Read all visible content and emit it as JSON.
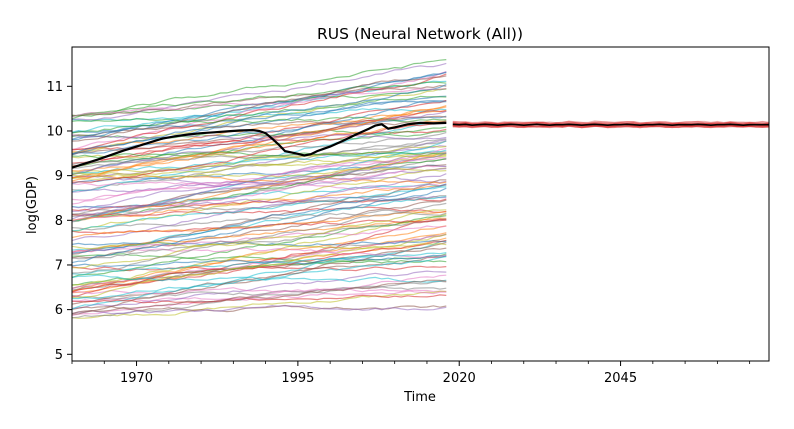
{
  "chart_data": {
    "type": "line",
    "title": "RUS (Neural Network (All))",
    "xlabel": "Time",
    "ylabel": "log(GDP)",
    "xlim": [
      1960,
      2068
    ],
    "ylim": [
      4.85,
      11.88
    ],
    "x_ticks": [
      1970,
      1995,
      2020,
      2045
    ],
    "y_ticks": [
      5,
      6,
      7,
      8,
      9,
      10,
      11
    ],
    "grid": false,
    "legend": "none",
    "highlight_series": {
      "color": "#000000",
      "x": [
        1960,
        1962,
        1964,
        1966,
        1968,
        1970,
        1972,
        1974,
        1976,
        1978,
        1980,
        1982,
        1984,
        1986,
        1988,
        1989,
        1990,
        1991,
        1992,
        1993,
        1994,
        1995,
        1996,
        1997,
        1998,
        1999,
        2000,
        2002,
        2004,
        2006,
        2007,
        2008,
        2009,
        2010,
        2012,
        2014,
        2016,
        2018
      ],
      "values": [
        9.18,
        9.27,
        9.36,
        9.46,
        9.56,
        9.65,
        9.74,
        9.83,
        9.88,
        9.92,
        9.95,
        9.97,
        9.99,
        10.01,
        10.02,
        10.0,
        9.95,
        9.83,
        9.7,
        9.55,
        9.52,
        9.49,
        9.45,
        9.48,
        9.55,
        9.6,
        9.65,
        9.78,
        9.92,
        10.05,
        10.12,
        10.15,
        10.05,
        10.08,
        10.15,
        10.18,
        10.17,
        10.18
      ]
    },
    "forecast": {
      "x_start": 2019,
      "x_end": 2068,
      "mean": [
        10.15,
        10.14,
        10.15,
        10.13,
        10.14,
        10.15,
        10.14,
        10.13,
        10.14,
        10.15,
        10.14,
        10.13,
        10.14,
        10.15,
        10.14,
        10.13,
        10.14,
        10.14,
        10.15,
        10.14,
        10.13,
        10.14,
        10.15,
        10.14,
        10.13,
        10.14,
        10.14,
        10.15,
        10.14,
        10.13,
        10.14,
        10.14,
        10.15,
        10.14,
        10.13,
        10.14,
        10.14,
        10.14,
        10.15,
        10.14,
        10.13,
        10.14,
        10.14,
        10.15,
        10.14,
        10.13,
        10.14,
        10.14,
        10.14,
        10.14
      ],
      "band_width": 0.12,
      "line_color": "#000000",
      "band_color": "#d62728"
    },
    "background_series_count": 120,
    "background_series_year_range": [
      1960,
      2018
    ],
    "colors": {
      "palette": [
        "#1f77b4",
        "#ff7f0e",
        "#2ca02c",
        "#d62728",
        "#9467bd",
        "#8c564b",
        "#e377c2",
        "#7f7f7f",
        "#bcbd22",
        "#17becf"
      ]
    }
  }
}
